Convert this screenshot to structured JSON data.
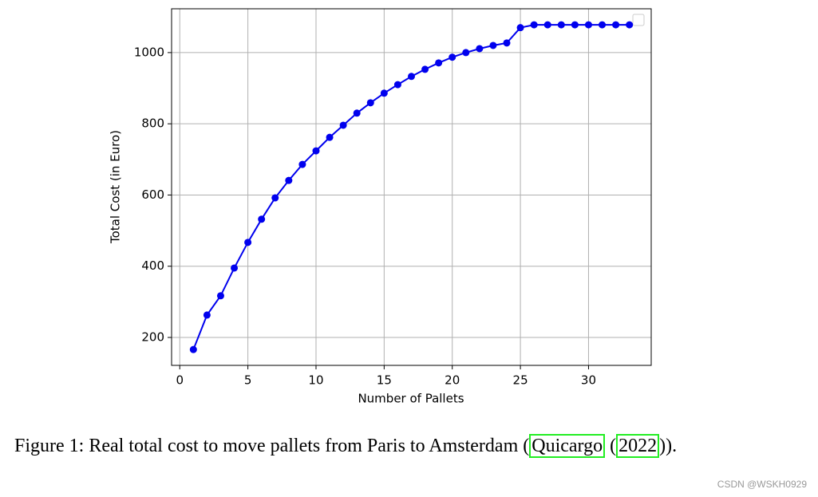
{
  "chart_data": {
    "type": "line",
    "x_label": "Number of Pallets",
    "y_label": "Total Cost (in Euro)",
    "x": [
      1,
      2,
      3,
      4,
      5,
      6,
      7,
      8,
      9,
      10,
      11,
      12,
      13,
      14,
      15,
      16,
      17,
      18,
      19,
      20,
      21,
      22,
      23,
      24,
      25,
      26,
      27,
      28,
      29,
      30,
      31,
      32,
      33
    ],
    "values": [
      166,
      263,
      317,
      395,
      467,
      532,
      592,
      641,
      686,
      724,
      762,
      796,
      830,
      859,
      886,
      910,
      933,
      953,
      971,
      987,
      1000,
      1011,
      1020,
      1027,
      1070,
      1078,
      1078,
      1078,
      1078,
      1078,
      1078,
      1078,
      1078
    ],
    "color": "#0000ee",
    "xlim": [
      -0.6,
      34.6
    ],
    "ylim": [
      121.6,
      1123
    ],
    "xticks": [
      0,
      5,
      10,
      15,
      20,
      25,
      30
    ],
    "yticks": [
      200,
      400,
      600,
      800,
      1000
    ],
    "grid": true
  },
  "caption": {
    "before": "Figure 1: Real total cost to move pallets from Paris to Amsterdam (",
    "ref": "Quicargo",
    "middle": " (",
    "year": "2022",
    "after": "))."
  },
  "watermark": "CSDN @WSKH0929"
}
